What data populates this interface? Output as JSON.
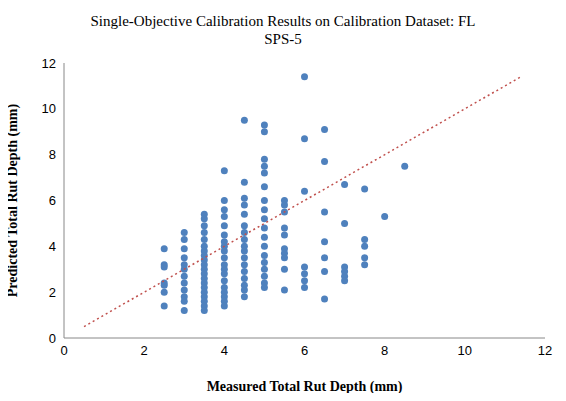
{
  "chart_data": {
    "type": "scatter",
    "title": "Single-Objective Calibration Results on Calibration Dataset: FL",
    "subtitle": "SPS-5",
    "x_label": "Measured Total Rut Depth (mm)",
    "y_label": "Predicted Total Rut Depth (mm)",
    "xlim": [
      0,
      12
    ],
    "ylim": [
      0,
      12
    ],
    "xticks": [
      0,
      2,
      4,
      6,
      8,
      10,
      12
    ],
    "yticks": [
      0,
      2,
      4,
      6,
      8,
      10,
      12
    ],
    "grid": false,
    "series": [
      {
        "type": "scatter",
        "color": "#4f81bd",
        "marker": "circle",
        "x": [
          2.5,
          2.5,
          2.5,
          2.5,
          2.5,
          2.5,
          2.5,
          3,
          3,
          3,
          3,
          3,
          3,
          3,
          3,
          3,
          3,
          3,
          3,
          3.5,
          3.5,
          3.5,
          3.5,
          3.5,
          3.5,
          3.5,
          3.5,
          3.5,
          3.5,
          3.5,
          3.5,
          3.5,
          3.5,
          3.5,
          3.5,
          3.5,
          3.5,
          3.5,
          3.5,
          4,
          4,
          4,
          4,
          4,
          4,
          4,
          4,
          4,
          4,
          4,
          4,
          4,
          4,
          4,
          4,
          4,
          4,
          4,
          4.5,
          4.5,
          4.5,
          4.5,
          4.5,
          4.5,
          4.5,
          4.5,
          4.5,
          4.5,
          4.5,
          4.5,
          4.5,
          4.5,
          4.5,
          4.5,
          4.5,
          5,
          5,
          5,
          5,
          5,
          5,
          5,
          5,
          5,
          5,
          5,
          5,
          5,
          5,
          5,
          5,
          5,
          5,
          5.5,
          5.5,
          5.5,
          5.5,
          5.5,
          5.5,
          5.5,
          5.5,
          5.5,
          5.5,
          6,
          6,
          6,
          6,
          6,
          6,
          6,
          6.5,
          6.5,
          6.5,
          6.5,
          6.5,
          6.5,
          6.5,
          7,
          7,
          7,
          7,
          7,
          7,
          7.5,
          7.5,
          7.5,
          7.5,
          7.5,
          8,
          8.5
        ],
        "values": [
          3.9,
          3.2,
          3.1,
          2.4,
          2.3,
          2.0,
          1.4,
          4.6,
          4.3,
          3.9,
          3.5,
          3.2,
          3.0,
          2.7,
          2.4,
          2.1,
          1.8,
          1.6,
          1.2,
          5.4,
          5.2,
          4.9,
          4.6,
          4.3,
          4.0,
          3.8,
          3.6,
          3.4,
          3.2,
          3.0,
          2.8,
          2.6,
          2.4,
          2.2,
          2.0,
          1.8,
          1.6,
          1.4,
          1.2,
          7.3,
          6.0,
          5.6,
          5.3,
          4.9,
          4.5,
          4.2,
          4.0,
          3.8,
          3.5,
          3.2,
          3.0,
          2.8,
          2.5,
          2.2,
          2.0,
          1.8,
          1.6,
          1.4,
          9.5,
          6.8,
          6.1,
          5.8,
          5.4,
          4.9,
          4.6,
          4.3,
          4.0,
          3.8,
          3.5,
          3.2,
          2.9,
          2.6,
          2.3,
          2.1,
          1.8,
          9.3,
          9.0,
          7.8,
          7.5,
          7.2,
          6.6,
          6.0,
          5.6,
          5.2,
          4.8,
          4.4,
          4.0,
          3.6,
          3.3,
          3.0,
          2.7,
          2.4,
          2.2,
          6.0,
          5.8,
          5.5,
          4.8,
          4.5,
          3.9,
          3.7,
          3.5,
          3.0,
          2.1,
          11.4,
          8.7,
          6.4,
          3.1,
          2.8,
          2.5,
          2.2,
          9.1,
          7.7,
          5.5,
          4.2,
          3.5,
          2.9,
          1.7,
          6.7,
          5.0,
          3.1,
          2.9,
          2.7,
          2.5,
          6.5,
          4.3,
          4.0,
          3.5,
          3.2,
          5.3,
          7.5
        ]
      },
      {
        "type": "line",
        "color": "#c0504d",
        "line_style": "dotted",
        "x": [
          0.5,
          11.4
        ],
        "values": [
          0.5,
          11.4
        ]
      }
    ]
  }
}
